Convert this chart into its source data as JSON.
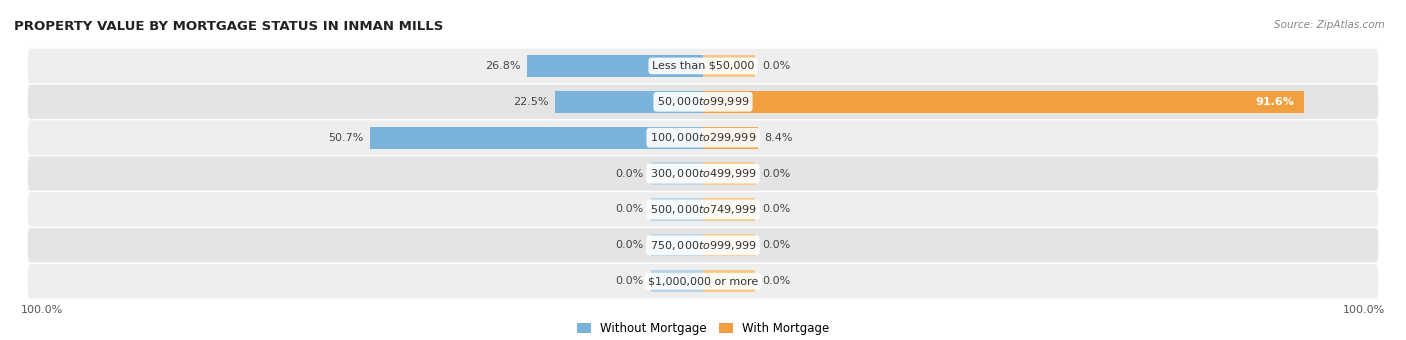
{
  "title": "PROPERTY VALUE BY MORTGAGE STATUS IN INMAN MILLS",
  "source": "Source: ZipAtlas.com",
  "categories": [
    "Less than $50,000",
    "$50,000 to $99,999",
    "$100,000 to $299,999",
    "$300,000 to $499,999",
    "$500,000 to $749,999",
    "$750,000 to $999,999",
    "$1,000,000 or more"
  ],
  "without_mortgage": [
    26.8,
    22.5,
    50.7,
    0.0,
    0.0,
    0.0,
    0.0
  ],
  "with_mortgage": [
    0.0,
    91.6,
    8.4,
    0.0,
    0.0,
    0.0,
    0.0
  ],
  "without_mortgage_color": "#7ab3d9",
  "with_mortgage_color": "#f0a040",
  "without_mortgage_color_light": "#b8d4ea",
  "with_mortgage_color_light": "#f5c98a",
  "row_bg_odd": "#eeeeee",
  "row_bg_even": "#e4e4e4",
  "label_color": "#444444",
  "title_color": "#222222",
  "max_val": 100.0,
  "stub_size": 8.0,
  "figsize": [
    14.06,
    3.4
  ],
  "dpi": 100
}
